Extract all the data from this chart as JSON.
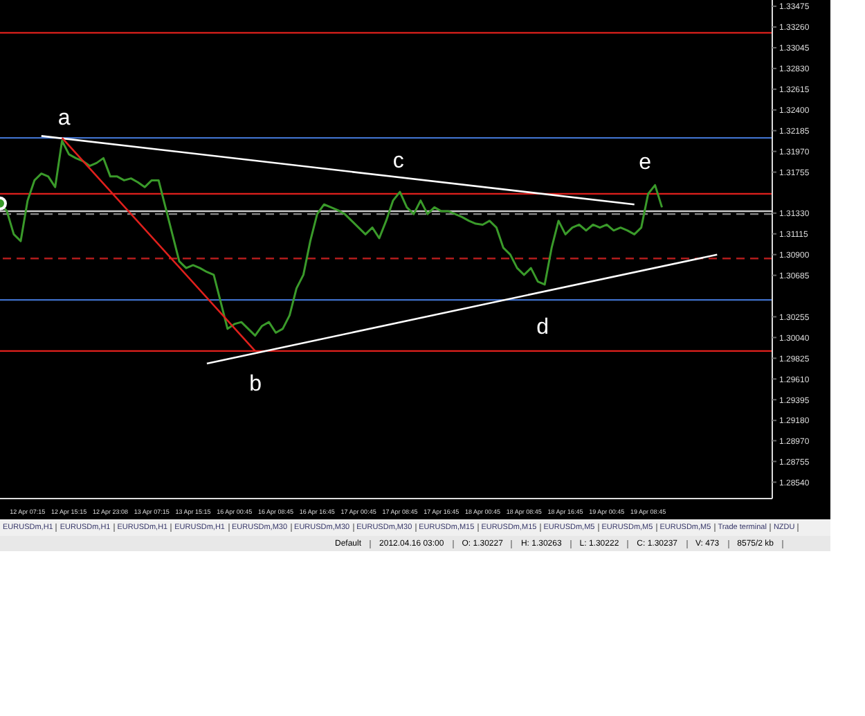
{
  "chart_data": {
    "type": "line",
    "categories": [
      null,
      null,
      null,
      null,
      "12 Apr 07:15",
      null,
      null,
      null,
      null,
      null,
      "12 Apr 15:15",
      null,
      null,
      null,
      null,
      null,
      "12 Apr 23:08",
      null,
      null,
      null,
      null,
      null,
      "13 Apr 07:15",
      null,
      null,
      null,
      null,
      null,
      "13 Apr 15:15",
      null,
      null,
      null,
      null,
      null,
      "16 Apr 00:45",
      null,
      null,
      null,
      null,
      null,
      "16 Apr 08:45",
      null,
      null,
      null,
      null,
      null,
      "16 Apr 16:45",
      null,
      null,
      null,
      null,
      null,
      "17 Apr 00:45",
      null,
      null,
      null,
      null,
      null,
      "17 Apr 08:45",
      null,
      null,
      null,
      null,
      null,
      "17 Apr 16:45",
      null,
      null,
      null,
      null,
      null,
      "18 Apr 00:45",
      null,
      null,
      null,
      null,
      null,
      "18 Apr 08:45",
      null,
      null,
      null,
      null,
      null,
      "18 Apr 16:45",
      null,
      null,
      null,
      null,
      null,
      "19 Apr 00:45",
      null,
      null,
      null,
      null,
      null,
      "19 Apr 08:45",
      null,
      null,
      null,
      null,
      null,
      null,
      null,
      null,
      null,
      null,
      null,
      null,
      null,
      null,
      null,
      null,
      null,
      null
    ],
    "series": [
      {
        "color": "#3a9a2a",
        "values": [
          1.3143,
          1.3135,
          1.3111,
          1.3104,
          1.3146,
          1.3167,
          1.3174,
          1.3171,
          1.316,
          1.3208,
          1.3194,
          1.319,
          1.3187,
          1.3182,
          1.3185,
          1.319,
          1.3171,
          1.3171,
          1.3167,
          1.3169,
          1.3165,
          1.316,
          1.3167,
          1.3167,
          1.3139,
          1.3111,
          1.3083,
          1.3076,
          1.3079,
          1.3076,
          1.3072,
          1.3069,
          1.3041,
          1.3013,
          1.3018,
          1.302,
          1.3013,
          1.3006,
          1.3016,
          1.302,
          1.3009,
          1.3013,
          1.3027,
          1.3055,
          1.3069,
          1.3104,
          1.3132,
          1.3142,
          1.3139,
          1.3136,
          1.3132,
          1.3125,
          1.3118,
          1.3111,
          1.3118,
          1.3107,
          1.3125,
          1.3146,
          1.3155,
          1.3139,
          1.3132,
          1.3146,
          1.3132,
          1.3139,
          1.3135,
          1.3135,
          1.3132,
          1.3129,
          1.3125,
          1.3122,
          1.3121,
          1.3125,
          1.3118,
          1.3097,
          1.309,
          1.3076,
          1.3069,
          1.3076,
          1.3062,
          1.3059,
          1.3097,
          1.3125,
          1.3111,
          1.3118,
          1.3121,
          1.3115,
          1.3121,
          1.3118,
          1.3121,
          1.3115,
          1.3118,
          1.3115,
          1.3111,
          1.3118,
          1.3153,
          1.3162,
          1.3139,
          null,
          null,
          null,
          null,
          null,
          null,
          null,
          null,
          null,
          null,
          null,
          null,
          null,
          null,
          null,
          null
        ]
      },
      {
        "color": "#ffffff",
        "values": [
          null,
          null,
          null,
          null,
          null,
          null,
          1.3213,
          null,
          null,
          null,
          null,
          null,
          null,
          null,
          null,
          null,
          null,
          null,
          null,
          null,
          null,
          null,
          null,
          null,
          null,
          null,
          null,
          null,
          null,
          null,
          null,
          null,
          null,
          null,
          null,
          null,
          null,
          null,
          null,
          null,
          null,
          null,
          null,
          null,
          null,
          null,
          null,
          null,
          null,
          null,
          null,
          null,
          null,
          null,
          null,
          null,
          null,
          null,
          null,
          null,
          null,
          null,
          null,
          null,
          null,
          null,
          null,
          null,
          null,
          null,
          null,
          null,
          null,
          null,
          null,
          null,
          null,
          null,
          null,
          null,
          null,
          null,
          null,
          null,
          null,
          null,
          null,
          null,
          null,
          null,
          null,
          null,
          1.3142,
          null,
          null,
          null,
          null,
          null,
          null,
          null,
          null,
          null,
          null,
          null,
          null,
          null,
          null,
          null,
          null,
          null,
          null,
          null,
          null
        ]
      },
      {
        "color": "#ffffff",
        "values": [
          null,
          null,
          null,
          null,
          null,
          null,
          null,
          null,
          null,
          null,
          null,
          null,
          null,
          null,
          null,
          null,
          null,
          null,
          null,
          null,
          null,
          null,
          null,
          null,
          null,
          null,
          null,
          null,
          null,
          null,
          1.2977,
          null,
          null,
          null,
          null,
          null,
          null,
          null,
          null,
          null,
          null,
          null,
          null,
          null,
          null,
          null,
          null,
          null,
          null,
          null,
          null,
          null,
          null,
          null,
          null,
          null,
          null,
          null,
          null,
          null,
          null,
          null,
          null,
          null,
          null,
          null,
          null,
          null,
          null,
          null,
          null,
          null,
          null,
          null,
          null,
          null,
          null,
          null,
          null,
          null,
          null,
          null,
          null,
          null,
          null,
          null,
          null,
          null,
          null,
          null,
          null,
          null,
          null,
          null,
          null,
          null,
          null,
          null,
          null,
          null,
          null,
          null,
          null,
          null,
          1.309,
          null,
          null,
          null,
          null,
          null,
          null,
          null,
          null
        ]
      },
      {
        "color": "#e0201c",
        "values": [
          null,
          null,
          null,
          null,
          null,
          null,
          null,
          null,
          null,
          1.3211,
          null,
          null,
          null,
          null,
          null,
          null,
          null,
          null,
          null,
          null,
          null,
          null,
          null,
          null,
          null,
          null,
          null,
          null,
          null,
          null,
          null,
          null,
          null,
          null,
          null,
          null,
          null,
          1.299,
          null,
          null,
          null,
          null,
          null,
          null,
          null,
          null,
          null,
          null,
          null,
          null,
          null,
          null,
          null,
          null,
          null,
          null,
          null,
          null,
          null,
          null,
          null,
          null,
          null,
          null,
          null,
          null,
          null,
          null,
          null,
          null,
          null,
          null,
          null,
          null,
          null,
          null,
          null,
          null,
          null,
          null,
          null,
          null,
          null,
          null,
          null,
          null,
          null,
          null,
          null,
          null,
          null,
          null,
          null,
          null,
          null,
          null,
          null,
          null,
          null,
          null,
          null,
          null,
          null,
          null,
          null,
          null,
          null,
          null,
          null,
          null,
          null,
          null,
          null
        ]
      }
    ],
    "ylim": [
      1.2837,
      1.3354
    ],
    "yticks": [
      1.33475,
      {
        "value": 1.3326,
        "label": "1.33260"
      },
      1.33045,
      {
        "value": 1.3283,
        "label": "1.32830"
      },
      1.32615,
      {
        "value": 1.324,
        "label": "1.32400"
      },
      1.32185,
      {
        "value": 1.3197,
        "label": "1.31970"
      },
      1.31755,
      {
        "value": 1.3133,
        "label": "1.31330"
      },
      1.31115,
      {
        "value": 1.309,
        "label": "1.30900"
      },
      1.30685,
      1.30255,
      {
        "value": 1.3004,
        "label": "1.30040"
      },
      1.29825,
      {
        "value": 1.2961,
        "label": "1.29610"
      },
      1.29395,
      {
        "value": 1.2918,
        "label": "1.29180"
      },
      {
        "value": 1.2897,
        "label": "1.28970"
      },
      1.28755,
      {
        "value": 1.2854,
        "label": "1.28540"
      }
    ],
    "ref_lines": [
      {
        "axis": "y",
        "value": 1.332,
        "color": "#e0201c",
        "line_style": "solid"
      },
      {
        "axis": "y",
        "value": 1.3211,
        "color": "#3f6fc8",
        "line_style": "solid"
      },
      {
        "axis": "y",
        "value": 1.3153,
        "color": "#e0201c",
        "line_style": "solid"
      },
      {
        "axis": "y",
        "value": 1.3135,
        "color": "#c8c8c8",
        "line_style": "solid"
      },
      {
        "axis": "y",
        "value": 1.3132,
        "color": "#8a8a8a",
        "line_style": "dashed"
      },
      {
        "axis": "y",
        "value": 1.3086,
        "color": "#b01c1c",
        "line_style": "dashed"
      },
      {
        "axis": "y",
        "value": 1.3043,
        "color": "#3f6fc8",
        "line_style": "solid"
      },
      {
        "axis": "y",
        "value": 1.299,
        "color": "#e0201c",
        "line_style": "solid"
      }
    ],
    "annotations": [
      "a",
      "b",
      "c",
      "d",
      "e",
      "EURUSDm,H1",
      "EURUSDm,H1",
      "EURUSDm,H1",
      "EURUSDm,H1",
      "EURUSDm,M30",
      "EURUSDm,M30",
      "EURUSDm,M30",
      "EURUSDm,M15",
      "EURUSDm,M15",
      "EURUSDm,M5",
      "EURUSDm,M5",
      "EURUSDm,M5",
      "Trade terminal",
      "NZDU",
      "Default",
      "2012.04.16 03:00",
      "O: 1.30227",
      "H: 1.30263",
      "L: 1.30222",
      "C: 1.30237",
      "V: 473",
      "8575/2 kb"
    ],
    "marker": "none",
    "line_style": "solid"
  }
}
